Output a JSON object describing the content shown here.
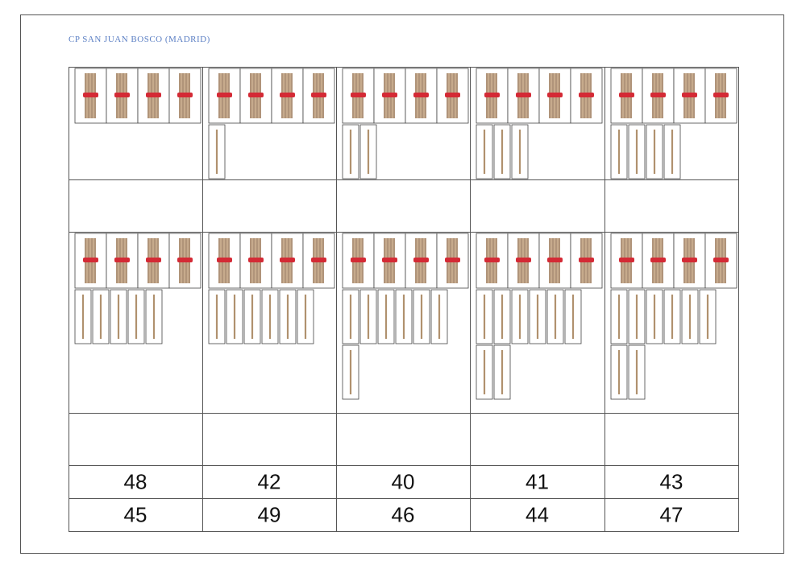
{
  "header": {
    "title": "CP SAN JUAN BOSCO (MADRID)"
  },
  "table": {
    "rows": [
      [
        48,
        42,
        40,
        41,
        43
      ],
      [
        45,
        49,
        46,
        44,
        47
      ]
    ]
  }
}
